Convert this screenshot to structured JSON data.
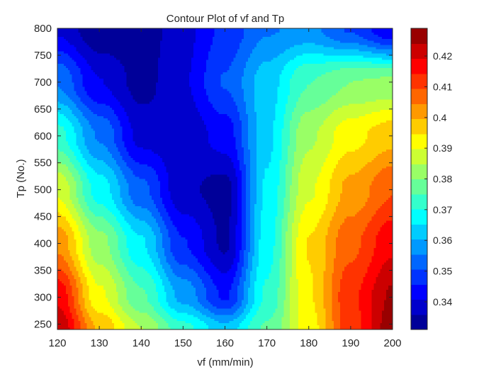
{
  "chart_data": {
    "type": "heatmap",
    "subtype": "filled-contour",
    "title": "Contour Plot of vf and Tp",
    "xlabel": "vf (mm/min)",
    "ylabel": "Tp (No.)",
    "xlim": [
      120,
      200
    ],
    "ylim": [
      240,
      800
    ],
    "xticks": [
      120,
      130,
      140,
      150,
      160,
      170,
      180,
      190,
      200
    ],
    "yticks": [
      250,
      300,
      350,
      400,
      450,
      500,
      550,
      600,
      650,
      700,
      750,
      800
    ],
    "colormap": "jet",
    "clim": [
      0.331,
      0.429
    ],
    "colorbar_ticks": [
      0.34,
      0.35,
      0.36,
      0.37,
      0.38,
      0.39,
      0.4,
      0.41,
      0.42
    ],
    "contour_levels": 20,
    "x": [
      120,
      130,
      140,
      150,
      160,
      170,
      180,
      190,
      200
    ],
    "y": [
      240,
      300,
      400,
      500,
      600,
      700,
      800
    ],
    "z": [
      [
        0.424,
        0.399,
        0.385,
        0.372,
        0.362,
        0.376,
        0.392,
        0.412,
        0.427
      ],
      [
        0.418,
        0.391,
        0.376,
        0.359,
        0.345,
        0.371,
        0.394,
        0.413,
        0.425
      ],
      [
        0.403,
        0.382,
        0.366,
        0.346,
        0.335,
        0.368,
        0.395,
        0.408,
        0.418
      ],
      [
        0.389,
        0.368,
        0.352,
        0.337,
        0.334,
        0.366,
        0.389,
        0.401,
        0.409
      ],
      [
        0.372,
        0.355,
        0.339,
        0.337,
        0.343,
        0.364,
        0.384,
        0.393,
        0.398
      ],
      [
        0.355,
        0.341,
        0.334,
        0.34,
        0.351,
        0.363,
        0.375,
        0.38,
        0.381
      ],
      [
        0.34,
        0.332,
        0.333,
        0.339,
        0.347,
        0.355,
        0.357,
        0.35,
        0.341
      ]
    ]
  }
}
